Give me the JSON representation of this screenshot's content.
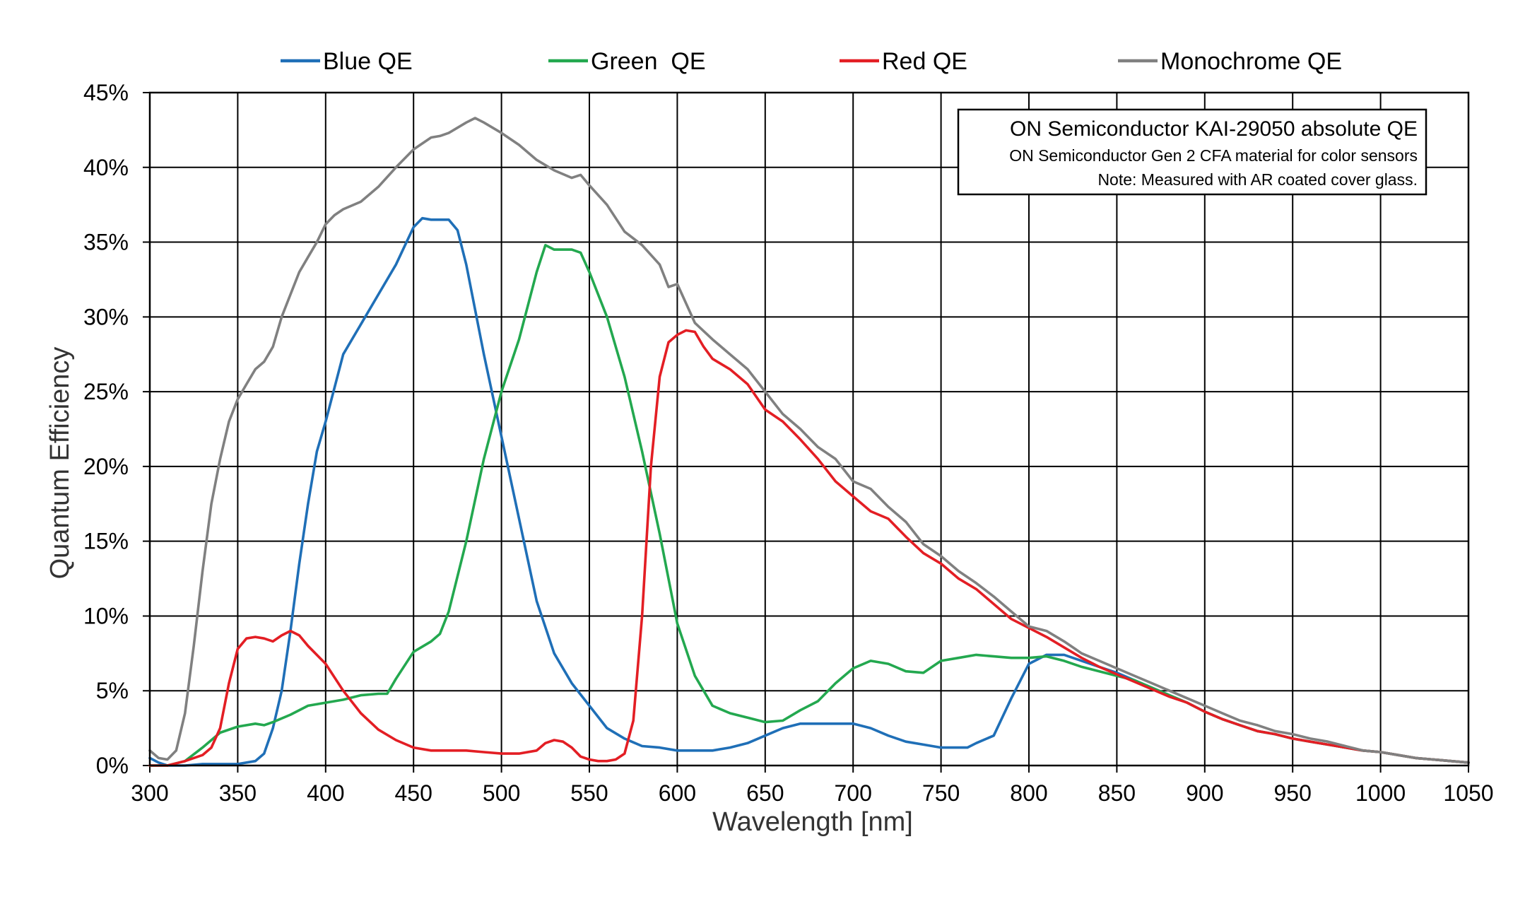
{
  "chart_data": {
    "type": "line",
    "title": "",
    "xlabel": "Wavelength [nm]",
    "ylabel": "Quantum Efficiency",
    "xlim": [
      300,
      1050
    ],
    "ylim": [
      0,
      45
    ],
    "x_ticks": [
      "300",
      "350",
      "400",
      "450",
      "500",
      "550",
      "600",
      "650",
      "700",
      "750",
      "800",
      "850",
      "900",
      "950",
      "1000",
      "1050"
    ],
    "y_ticks": [
      "0%",
      "5%",
      "10%",
      "15%",
      "20%",
      "25%",
      "30%",
      "35%",
      "40%",
      "45%"
    ],
    "grid": true,
    "legend_position": "top",
    "annotation": {
      "title": "ON Semiconductor KAI-29050 absolute QE",
      "line1": "ON Semiconductor Gen 2 CFA material for color sensors",
      "line2": "Note: Measured with AR coated cover glass."
    },
    "series": [
      {
        "name": "Blue QE",
        "color": "#1f6fb7",
        "x": [
          300,
          305,
          310,
          320,
          330,
          340,
          350,
          360,
          365,
          370,
          375,
          380,
          385,
          390,
          395,
          400,
          410,
          420,
          430,
          440,
          450,
          455,
          460,
          470,
          475,
          480,
          490,
          500,
          510,
          520,
          530,
          540,
          550,
          560,
          570,
          580,
          590,
          600,
          610,
          620,
          630,
          640,
          650,
          660,
          670,
          680,
          690,
          700,
          710,
          720,
          730,
          740,
          750,
          760,
          765,
          770,
          780,
          790,
          800,
          810,
          820,
          830,
          840,
          850,
          860,
          870,
          880,
          890,
          900,
          910,
          920,
          930,
          940,
          950,
          960,
          970,
          980,
          990,
          1000,
          1010,
          1020,
          1030,
          1040,
          1050
        ],
        "values": [
          0.5,
          0.2,
          0,
          0,
          0.1,
          0.1,
          0.1,
          0.3,
          0.8,
          2.5,
          5,
          9,
          13.5,
          17.5,
          21,
          23,
          27.5,
          29.5,
          31.5,
          33.5,
          36,
          36.6,
          36.5,
          36.5,
          35.8,
          33.5,
          27.5,
          22,
          16.5,
          11,
          7.5,
          5.5,
          4,
          2.5,
          1.8,
          1.3,
          1.2,
          1,
          1,
          1,
          1.2,
          1.5,
          2,
          2.5,
          2.8,
          2.8,
          2.8,
          2.8,
          2.5,
          2,
          1.6,
          1.4,
          1.2,
          1.2,
          1.2,
          1.5,
          2,
          4.5,
          6.8,
          7.4,
          7.4,
          7,
          6.6,
          6.2,
          5.7,
          5.2,
          4.7,
          4.2,
          3.6,
          3.1,
          2.7,
          2.3,
          2.1,
          1.8,
          1.6,
          1.4,
          1.2,
          1,
          0.9,
          0.7,
          0.5,
          0.4,
          0.3,
          0.2
        ]
      },
      {
        "name": "Green  QE",
        "color": "#23a84f",
        "x": [
          300,
          310,
          320,
          330,
          340,
          350,
          360,
          365,
          370,
          380,
          390,
          400,
          410,
          420,
          430,
          435,
          440,
          450,
          460,
          465,
          470,
          480,
          490,
          500,
          510,
          520,
          525,
          530,
          540,
          545,
          550,
          560,
          570,
          580,
          590,
          600,
          610,
          620,
          630,
          640,
          650,
          660,
          670,
          680,
          690,
          700,
          710,
          720,
          730,
          740,
          750,
          760,
          770,
          780,
          790,
          800,
          810,
          820,
          830,
          840,
          850,
          860,
          870,
          880,
          890,
          900,
          910,
          920,
          930,
          940,
          950,
          960,
          970,
          980,
          990,
          1000,
          1010,
          1020,
          1030,
          1040,
          1050
        ],
        "values": [
          0,
          0,
          0.3,
          1.2,
          2.2,
          2.6,
          2.8,
          2.7,
          2.9,
          3.4,
          4,
          4.2,
          4.4,
          4.7,
          4.8,
          4.8,
          5.8,
          7.6,
          8.3,
          8.8,
          10.3,
          15,
          20.5,
          25,
          28.5,
          33,
          34.8,
          34.5,
          34.5,
          34.3,
          33,
          30,
          26,
          21,
          15.5,
          9.5,
          6,
          4,
          3.5,
          3.2,
          2.9,
          3,
          3.7,
          4.3,
          5.5,
          6.5,
          7,
          6.8,
          6.3,
          6.2,
          7,
          7.2,
          7.4,
          7.3,
          7.2,
          7.2,
          7.3,
          7,
          6.6,
          6.3,
          6,
          5.7,
          5.2,
          4.7,
          4.2,
          3.6,
          3.1,
          2.7,
          2.3,
          2.1,
          1.8,
          1.6,
          1.4,
          1.2,
          1,
          0.9,
          0.7,
          0.5,
          0.4,
          0.3,
          0.2
        ]
      },
      {
        "name": "Red QE",
        "color": "#e31e24",
        "x": [
          300,
          310,
          320,
          330,
          335,
          340,
          345,
          350,
          355,
          360,
          365,
          370,
          375,
          380,
          385,
          390,
          400,
          410,
          420,
          430,
          440,
          450,
          460,
          470,
          480,
          490,
          500,
          510,
          520,
          525,
          530,
          535,
          540,
          545,
          550,
          555,
          560,
          565,
          570,
          575,
          580,
          585,
          590,
          595,
          600,
          605,
          610,
          615,
          620,
          630,
          640,
          650,
          660,
          670,
          680,
          690,
          700,
          710,
          720,
          730,
          740,
          750,
          760,
          770,
          780,
          790,
          800,
          810,
          820,
          830,
          840,
          850,
          860,
          870,
          880,
          890,
          900,
          910,
          920,
          930,
          940,
          950,
          960,
          970,
          980,
          990,
          1000,
          1010,
          1020,
          1030,
          1040,
          1050
        ],
        "values": [
          0,
          0,
          0.3,
          0.7,
          1.2,
          2.5,
          5.5,
          7.8,
          8.5,
          8.6,
          8.5,
          8.3,
          8.7,
          9,
          8.7,
          8,
          6.8,
          5,
          3.5,
          2.4,
          1.7,
          1.2,
          1,
          1,
          1,
          0.9,
          0.8,
          0.8,
          1,
          1.5,
          1.7,
          1.6,
          1.2,
          0.6,
          0.4,
          0.3,
          0.3,
          0.4,
          0.8,
          3,
          10,
          20,
          26,
          28.3,
          28.8,
          29.1,
          29,
          28,
          27.2,
          26.5,
          25.5,
          23.8,
          23,
          21.8,
          20.5,
          19,
          18,
          17,
          16.5,
          15.3,
          14.2,
          13.5,
          12.5,
          11.8,
          10.8,
          9.8,
          9.2,
          8.6,
          7.9,
          7.2,
          6.6,
          6.1,
          5.6,
          5.1,
          4.6,
          4.2,
          3.6,
          3.1,
          2.7,
          2.3,
          2.1,
          1.8,
          1.6,
          1.4,
          1.2,
          1,
          0.9,
          0.7,
          0.5,
          0.4,
          0.3,
          0.2
        ]
      },
      {
        "name": "Monochrome QE",
        "color": "#808080",
        "x": [
          300,
          305,
          310,
          315,
          320,
          325,
          330,
          335,
          340,
          345,
          350,
          355,
          360,
          365,
          370,
          375,
          380,
          385,
          390,
          395,
          400,
          405,
          410,
          420,
          430,
          440,
          450,
          460,
          465,
          470,
          480,
          485,
          490,
          500,
          510,
          520,
          530,
          540,
          545,
          550,
          560,
          570,
          580,
          590,
          595,
          600,
          610,
          620,
          630,
          640,
          650,
          660,
          670,
          680,
          690,
          700,
          710,
          720,
          730,
          740,
          750,
          760,
          770,
          780,
          790,
          800,
          810,
          820,
          830,
          840,
          850,
          860,
          870,
          880,
          890,
          900,
          910,
          920,
          930,
          940,
          950,
          960,
          970,
          980,
          990,
          1000,
          1010,
          1020,
          1030,
          1040,
          1050
        ],
        "values": [
          1,
          0.5,
          0.4,
          1,
          3.5,
          8,
          13,
          17.5,
          20.5,
          23,
          24.5,
          25.5,
          26.5,
          27,
          28,
          30,
          31.5,
          33,
          34,
          35,
          36.2,
          36.8,
          37.2,
          37.7,
          38.7,
          40,
          41.2,
          42,
          42.1,
          42.3,
          43,
          43.3,
          43,
          42.3,
          41.5,
          40.5,
          39.8,
          39.3,
          39.5,
          38.8,
          37.5,
          35.7,
          34.8,
          33.5,
          32,
          32.2,
          29.6,
          28.5,
          27.5,
          26.5,
          25,
          23.5,
          22.5,
          21.3,
          20.5,
          19,
          18.5,
          17.3,
          16.3,
          14.8,
          14,
          13,
          12.2,
          11.3,
          10.3,
          9.3,
          9,
          8.3,
          7.5,
          7,
          6.5,
          6,
          5.5,
          5,
          4.5,
          4,
          3.5,
          3,
          2.7,
          2.3,
          2.1,
          1.8,
          1.6,
          1.3,
          1,
          0.9,
          0.7,
          0.5,
          0.4,
          0.3,
          0.2
        ]
      }
    ]
  }
}
